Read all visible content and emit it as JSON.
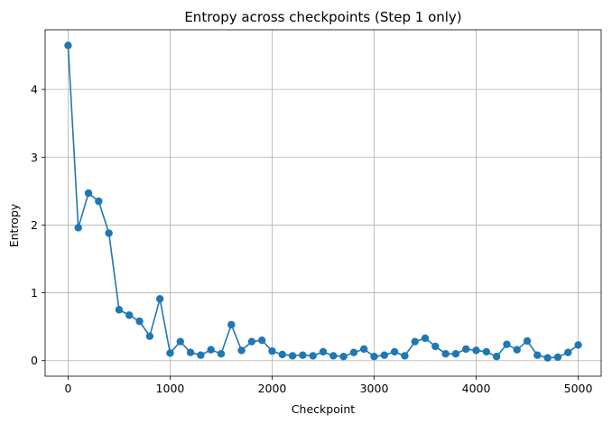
{
  "chart_data": {
    "type": "line",
    "title": "Entropy across checkpoints (Step 1 only)",
    "xlabel": "Checkpoint",
    "ylabel": "Entropy",
    "xlim": [
      -225,
      5225
    ],
    "ylim": [
      -0.23,
      4.88
    ],
    "xticks": [
      0,
      1000,
      2000,
      3000,
      4000,
      5000
    ],
    "yticks": [
      0,
      1,
      2,
      3,
      4
    ],
    "grid": true,
    "marker": "circle",
    "series": [
      {
        "name": "Entropy",
        "color": "#1f77b4",
        "x": [
          0,
          100,
          200,
          300,
          400,
          500,
          600,
          700,
          800,
          900,
          1000,
          1100,
          1200,
          1300,
          1400,
          1500,
          1600,
          1700,
          1800,
          1900,
          2000,
          2100,
          2200,
          2300,
          2400,
          2500,
          2600,
          2700,
          2800,
          2900,
          3000,
          3100,
          3200,
          3300,
          3400,
          3500,
          3600,
          3700,
          3800,
          3900,
          4000,
          4100,
          4200,
          4300,
          4400,
          4500,
          4600,
          4700,
          4800,
          4900,
          5000
        ],
        "y": [
          4.65,
          1.96,
          2.47,
          2.35,
          1.88,
          0.75,
          0.67,
          0.58,
          0.36,
          0.91,
          0.11,
          0.28,
          0.12,
          0.08,
          0.16,
          0.1,
          0.53,
          0.15,
          0.28,
          0.3,
          0.14,
          0.09,
          0.07,
          0.08,
          0.07,
          0.13,
          0.07,
          0.06,
          0.12,
          0.17,
          0.06,
          0.08,
          0.13,
          0.07,
          0.28,
          0.33,
          0.21,
          0.1,
          0.1,
          0.17,
          0.15,
          0.13,
          0.06,
          0.24,
          0.16,
          0.29,
          0.08,
          0.04,
          0.05,
          0.12,
          0.23
        ]
      }
    ]
  }
}
